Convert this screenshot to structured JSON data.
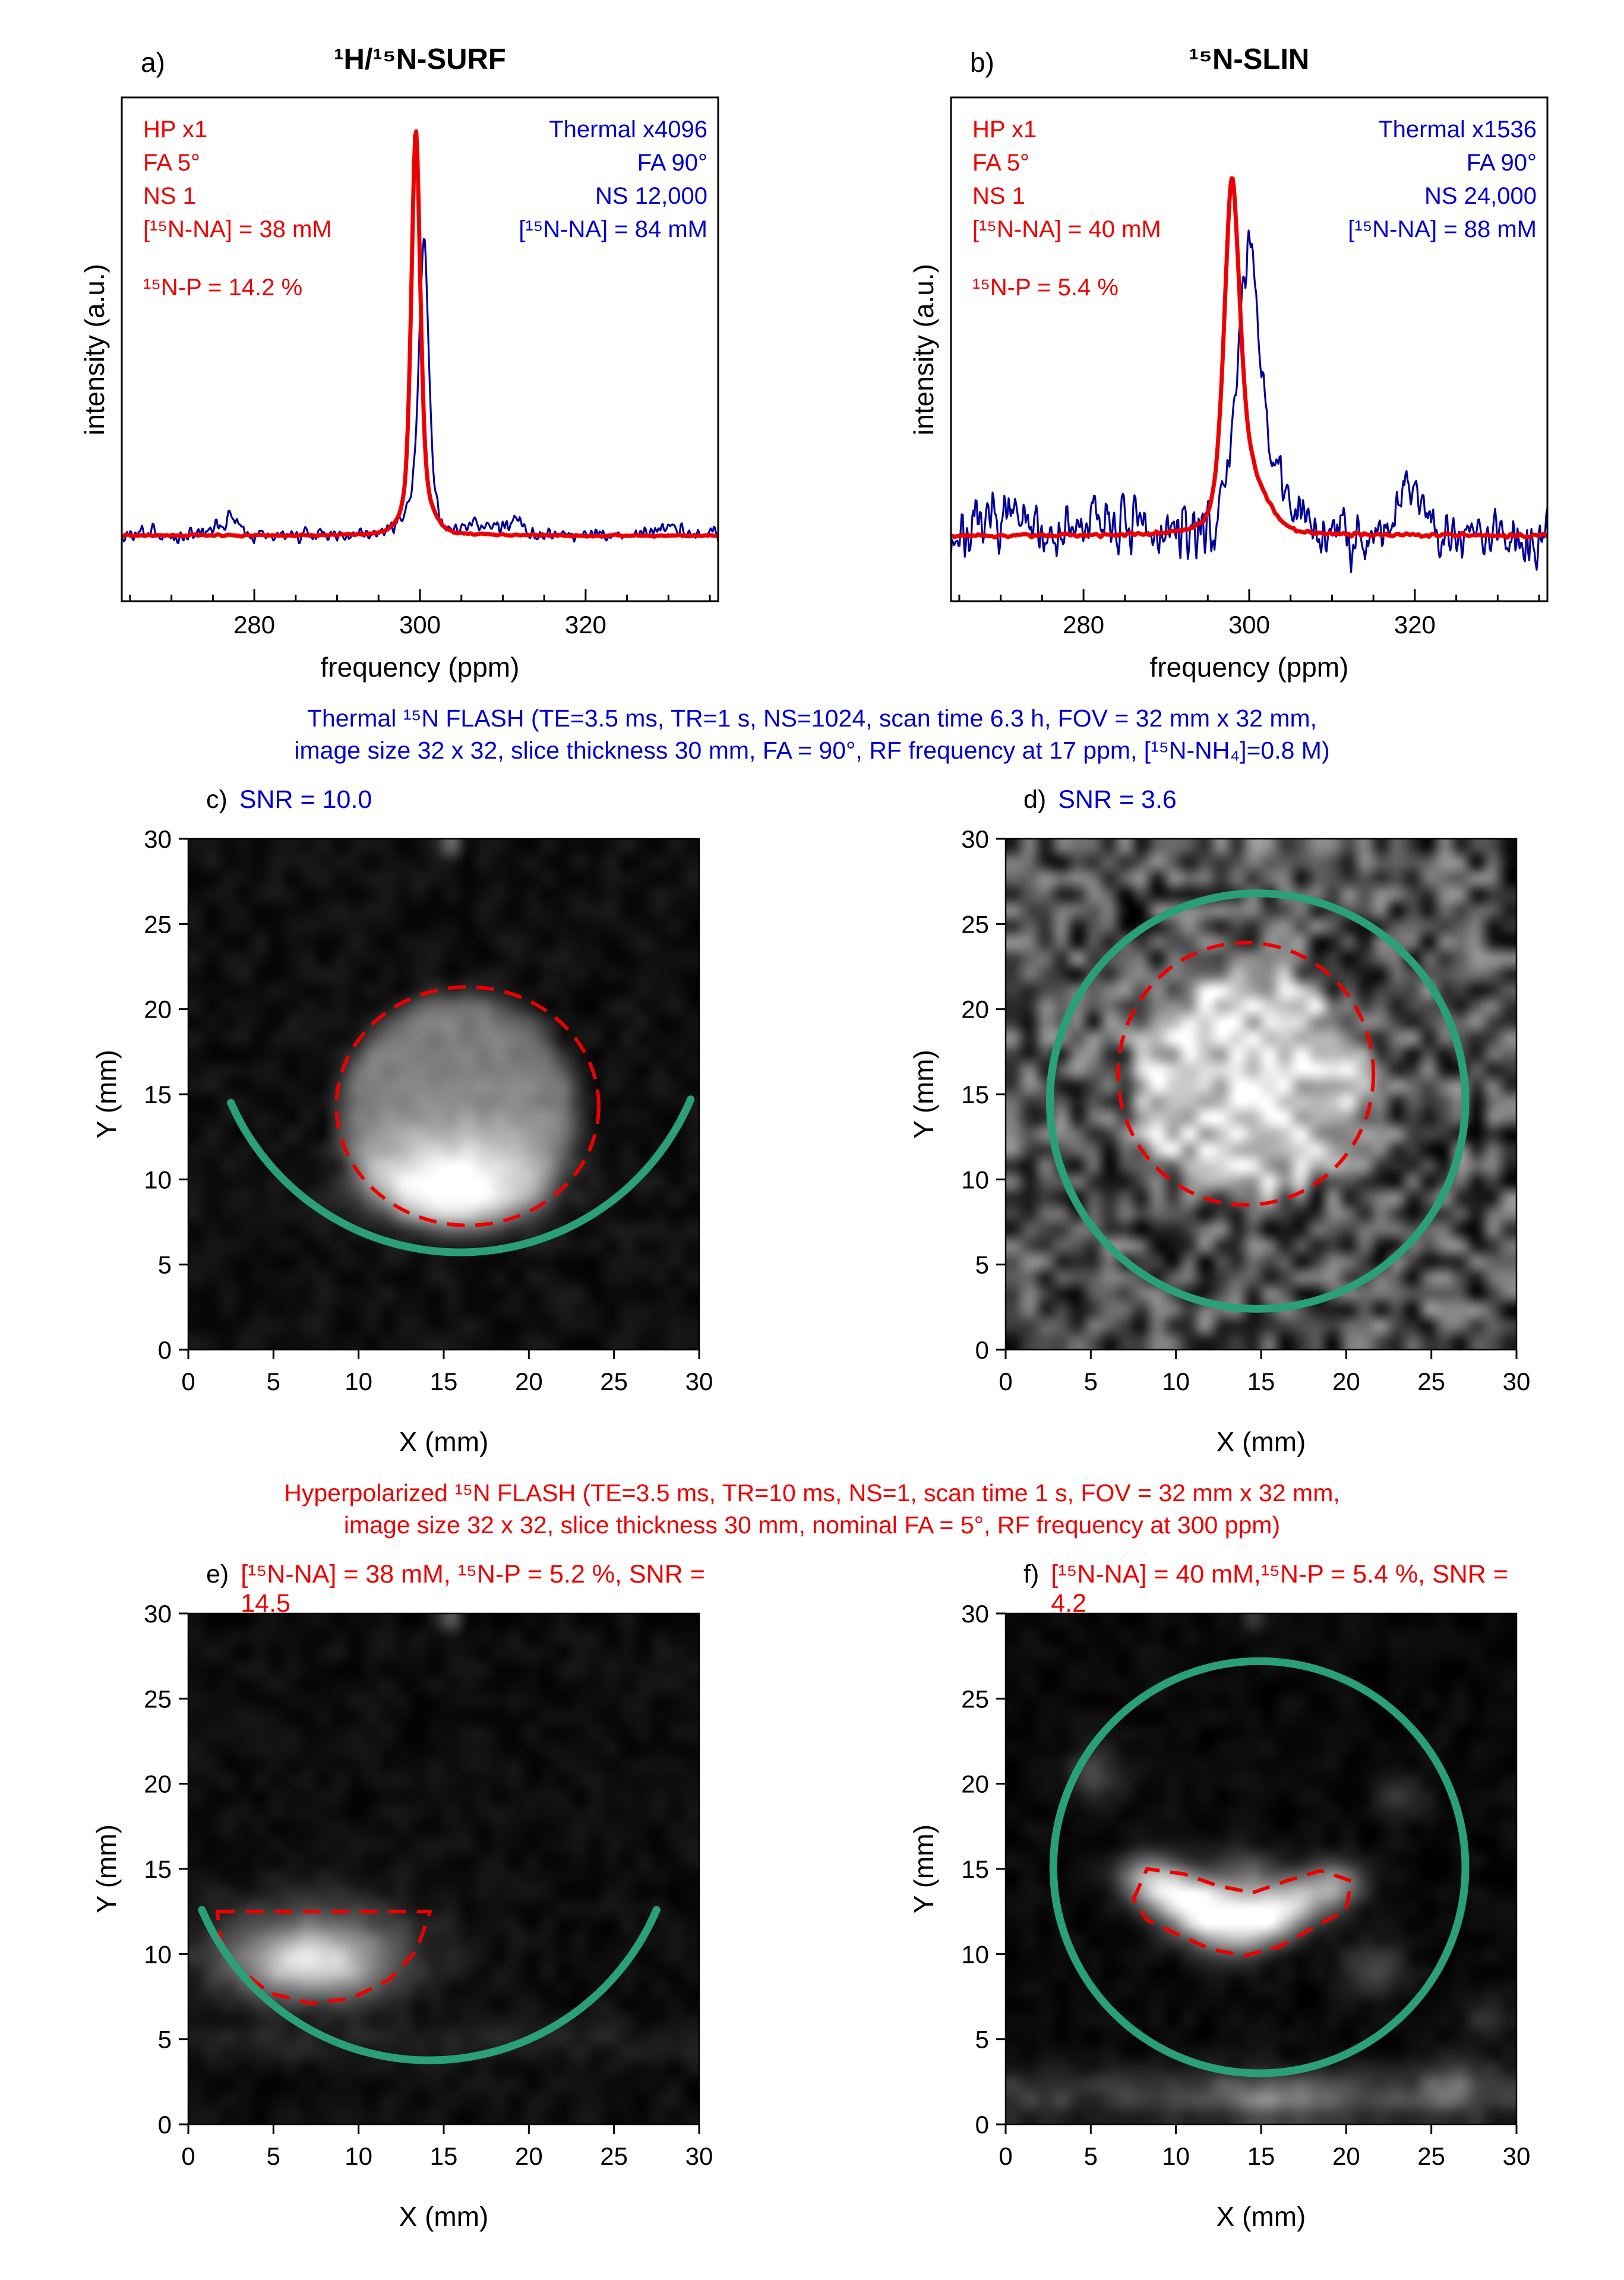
{
  "colors": {
    "red": "#ed0000",
    "blue": "#0000cd",
    "navy": "#000099",
    "green": "#2aa079",
    "axis": "#000000"
  },
  "captions": {
    "thermal_line1": "Thermal ¹⁵N FLASH (TE=3.5 ms, TR=1 s, NS=1024, scan time 6.3 h, FOV = 32 mm x 32 mm,",
    "thermal_line2": "image size 32 x 32, slice thickness 30 mm, FA = 90°, RF frequency at 17 ppm, [¹⁵N-NH₄]=0.8 M)",
    "hyper_line1": "Hyperpolarized ¹⁵N FLASH (TE=3.5 ms, TR=10 ms, NS=1, scan time 1 s, FOV = 32 mm x 32 mm,",
    "hyper_line2": "image size 32 x 32, slice thickness 30 mm, nominal FA = 5°, RF frequency at 300 ppm)"
  },
  "panels": {
    "a": {
      "tag": "a)",
      "title": "¹H/¹⁵N-SURF",
      "xlabel": "frequency (ppm)",
      "ylabel": "intensity (a.u.)",
      "left_lines": [
        "HP x1",
        "FA 5°",
        "NS 1",
        "[¹⁵N-NA] = 38 mM",
        "",
        "¹⁵N-P = 14.2 %"
      ],
      "right_lines": [
        "Thermal x4096",
        "FA 90°",
        "NS 12,000",
        "[¹⁵N-NA] = 84 mM"
      ]
    },
    "b": {
      "tag": "b)",
      "title": "¹⁵N-SLIN",
      "xlabel": "frequency (ppm)",
      "ylabel": "intensity (a.u.)",
      "left_lines": [
        "HP x1",
        "FA 5°",
        "NS 1",
        "[¹⁵N-NA] = 40 mM",
        "",
        "¹⁵N-P = 5.4 %"
      ],
      "right_lines": [
        "Thermal x1536",
        "FA 90°",
        "NS 24,000",
        "[¹⁵N-NA] = 88 mM"
      ]
    },
    "c": {
      "tag": "c)",
      "label": "SNR = 10.0",
      "xlabel": "X (mm)",
      "ylabel": "Y (mm)"
    },
    "d": {
      "tag": "d)",
      "label": "SNR = 3.6",
      "xlabel": "X (mm)",
      "ylabel": "Y (mm)"
    },
    "e": {
      "tag": "e)",
      "label": "[¹⁵N-NA] = 38 mM, ¹⁵N-P = 5.2 %, SNR = 14.5",
      "xlabel": "X (mm)",
      "ylabel": "Y (mm)"
    },
    "f": {
      "tag": "f)",
      "label": "[¹⁵N-NA] = 40 mM,¹⁵N-P = 5.4 %, SNR = 4.2",
      "xlabel": "X (mm)",
      "ylabel": "Y (mm)"
    }
  },
  "chart_data": [
    {
      "id": "a",
      "type": "line",
      "panel": "a",
      "title": "¹H/¹⁵N-SURF",
      "xlabel": "frequency (ppm)",
      "ylabel": "intensity (a.u.)",
      "xlim": [
        264,
        336
      ],
      "xticks": [
        280,
        300,
        320
      ],
      "xminor_step": 5,
      "baseline_frac": 0.87,
      "headroom_frac": 0.045,
      "series": [
        {
          "name": "Thermal x4096",
          "color": "#000099",
          "stroke": 3.2,
          "seed": 3,
          "noise": 0.014,
          "smooth": 1,
          "peaks": [
            {
              "c": 300.5,
              "h": 0.63,
              "w": 0.6
            },
            {
              "c": 299.8,
              "h": 0.1,
              "w": 1.4
            },
            {
              "c": 277.2,
              "h": 0.04,
              "w": 1.4
            },
            {
              "c": 307.6,
              "h": 0.028,
              "w": 1.4
            },
            {
              "c": 311.2,
              "h": 0.035,
              "w": 1.1
            },
            {
              "c": 329.5,
              "h": 0.02,
              "w": 1.8
            }
          ]
        },
        {
          "name": "HP x1",
          "color": "#ed0000",
          "stroke": 7,
          "seed": 4,
          "noise": 0.002,
          "smooth": 2,
          "peaks": [
            {
              "c": 299.5,
              "h": 0.88,
              "w": 0.55
            },
            {
              "c": 299.8,
              "h": 0.1,
              "w": 1.5
            }
          ]
        }
      ]
    },
    {
      "id": "b",
      "type": "line",
      "panel": "b",
      "title": "¹⁵N-SLIN",
      "xlabel": "frequency (ppm)",
      "ylabel": "intensity (a.u.)",
      "xlim": [
        264,
        336
      ],
      "xticks": [
        280,
        300,
        320
      ],
      "xminor_step": 5,
      "baseline_frac": 0.87,
      "headroom_frac": 0.045,
      "series": [
        {
          "name": "Thermal x1536",
          "color": "#000099",
          "stroke": 3.2,
          "seed": 7,
          "noise": 0.05,
          "smooth": 1,
          "peaks": [
            {
              "c": 299.9,
              "h": 0.52,
              "w": 1.1
            },
            {
              "c": 301.5,
              "h": 0.2,
              "w": 2.4
            },
            {
              "c": 298.4,
              "h": 0.1,
              "w": 0.9
            },
            {
              "c": 319.6,
              "h": 0.12,
              "w": 1.6
            },
            {
              "c": 282.5,
              "h": 0.04,
              "w": 2.0
            },
            {
              "c": 270.5,
              "h": 0.05,
              "w": 1.5
            }
          ]
        },
        {
          "name": "HP x1",
          "color": "#ed0000",
          "stroke": 7,
          "seed": 8,
          "noise": 0.004,
          "smooth": 2,
          "peaks": [
            {
              "c": 297.9,
              "h": 0.74,
              "w": 0.95
            },
            {
              "c": 299.5,
              "h": 0.16,
              "w": 2.3
            }
          ]
        }
      ]
    },
    {
      "id": "c",
      "type": "heatmap",
      "panel": "c",
      "label": "SNR = 10.0",
      "xlabel": "X (mm)",
      "ylabel": "Y (mm)",
      "xlim": [
        0,
        30
      ],
      "ylim": [
        0,
        30
      ],
      "ticks": [
        0,
        5,
        10,
        15,
        20,
        25,
        30
      ],
      "grid": 32,
      "seed": 5,
      "background": {
        "mean": 0.06,
        "noise": 0.05
      },
      "blobs": [
        {
          "type": "disk",
          "x": 15.9,
          "y": 13.9,
          "r": 6.9,
          "soft": 2.2,
          "i": 0.42
        },
        {
          "type": "gauss",
          "x": 15.4,
          "y": 9.4,
          "sx": 3.5,
          "sy": 1.5,
          "i": 0.5
        },
        {
          "type": "gauss",
          "x": 15.8,
          "y": 11.6,
          "sx": 3.6,
          "sy": 2.0,
          "i": 0.22
        },
        {
          "type": "gauss",
          "x": 15.2,
          "y": 29.5,
          "sx": 0.4,
          "sy": 0.4,
          "i": 0.4
        }
      ],
      "overlays": [
        {
          "kind": "dashed-ellipse",
          "color": "red",
          "cx": 16.4,
          "cy": 14.3,
          "rx": 7.7,
          "ry": 7.0
        },
        {
          "kind": "arc",
          "color": "green",
          "cx": 16.0,
          "cy": 20.3,
          "r": 14.7,
          "x1": 2.5,
          "y1": 14.5,
          "x2": 29.5,
          "y2": 14.7
        }
      ]
    },
    {
      "id": "d",
      "type": "heatmap",
      "panel": "d",
      "label": "SNR = 3.6",
      "xlabel": "X (mm)",
      "ylabel": "Y (mm)",
      "xlim": [
        0,
        30
      ],
      "ylim": [
        0,
        30
      ],
      "ticks": [
        0,
        5,
        10,
        15,
        20,
        25,
        30
      ],
      "grid": 32,
      "seed": 9,
      "background": {
        "mean": 0.3,
        "noise": 0.3
      },
      "blobs": [
        {
          "type": "disk",
          "x": 14.2,
          "y": 15.7,
          "r": 6.7,
          "soft": 2.4,
          "i": 0.45
        },
        {
          "type": "gauss",
          "x": 14.0,
          "y": 15.5,
          "sx": 4.0,
          "sy": 4.0,
          "i": 0.15
        },
        {
          "type": "gauss",
          "x": 15.0,
          "y": 29.5,
          "sx": 0.4,
          "sy": 0.4,
          "i": 0.35
        }
      ],
      "overlays": [
        {
          "kind": "circle",
          "color": "green",
          "cx": 14.8,
          "cy": 14.6,
          "r": 12.2
        },
        {
          "kind": "dashed-ellipse",
          "color": "red",
          "cx": 14.1,
          "cy": 16.2,
          "rx": 7.5,
          "ry": 7.7
        }
      ]
    },
    {
      "id": "e",
      "type": "heatmap",
      "panel": "e",
      "label": "[¹⁵N-NA] = 38 mM, ¹⁵N-P = 5.2 %, SNR = 14.5",
      "xlabel": "X (mm)",
      "ylabel": "Y (mm)",
      "xlim": [
        0,
        30
      ],
      "ylim": [
        0,
        30
      ],
      "ticks": [
        0,
        5,
        10,
        15,
        20,
        25,
        30
      ],
      "grid": 32,
      "seed": 13,
      "background": {
        "mean": 0.05,
        "noise": 0.045
      },
      "blobs": [
        {
          "type": "gauss",
          "x": 7.3,
          "y": 9.2,
          "sx": 3.0,
          "sy": 1.3,
          "i": 0.62
        },
        {
          "type": "gauss",
          "x": 7.6,
          "y": 11.0,
          "sx": 3.6,
          "sy": 1.5,
          "i": 0.27
        },
        {
          "type": "gauss",
          "x": 7.0,
          "y": 10.0,
          "sx": 5.0,
          "sy": 2.6,
          "i": 0.12
        },
        {
          "type": "hband",
          "y": 4.9,
          "sy": 0.7,
          "i": 0.1
        },
        {
          "type": "gauss",
          "x": 15.2,
          "y": 29.5,
          "sx": 0.4,
          "sy": 0.4,
          "i": 0.4
        }
      ],
      "overlays": [
        {
          "kind": "dashed-poly",
          "color": "red",
          "points": [
            [
              1.7,
              12.5
            ],
            [
              14.2,
              12.5
            ],
            [
              13.4,
              10.2
            ],
            [
              11.8,
              8.5
            ],
            [
              9.6,
              7.4
            ],
            [
              7.2,
              7.1
            ],
            [
              4.8,
              7.7
            ],
            [
              2.9,
              9.2
            ],
            [
              1.9,
              10.8
            ]
          ]
        },
        {
          "kind": "arc",
          "color": "green",
          "cx": 14.15,
          "cy": 18.3,
          "r": 14.5,
          "x1": 0.8,
          "y1": 12.6,
          "x2": 27.5,
          "y2": 12.6
        }
      ]
    },
    {
      "id": "f",
      "type": "heatmap",
      "panel": "f",
      "label": "[¹⁵N-NA] = 40 mM,¹⁵N-P = 5.4 %, SNR = 4.2",
      "xlabel": "X (mm)",
      "ylabel": "Y (mm)",
      "xlim": [
        0,
        30
      ],
      "ylim": [
        0,
        30
      ],
      "ticks": [
        0,
        5,
        10,
        15,
        20,
        25,
        30
      ],
      "grid": 32,
      "seed": 21,
      "background": {
        "mean": 0.035,
        "noise": 0.04
      },
      "blobs": [
        {
          "type": "gauss",
          "x": 9.5,
          "y": 13.9,
          "sx": 1.3,
          "sy": 1.0,
          "i": 0.7
        },
        {
          "type": "gauss",
          "x": 11.5,
          "y": 12.7,
          "sx": 1.5,
          "sy": 1.1,
          "i": 0.85
        },
        {
          "type": "gauss",
          "x": 13.6,
          "y": 11.8,
          "sx": 1.7,
          "sy": 1.2,
          "i": 0.8
        },
        {
          "type": "gauss",
          "x": 15.6,
          "y": 12.4,
          "sx": 1.4,
          "sy": 1.0,
          "i": 0.6
        },
        {
          "type": "gauss",
          "x": 17.6,
          "y": 13.4,
          "sx": 1.4,
          "sy": 1.0,
          "i": 0.55
        },
        {
          "type": "gauss",
          "x": 19.6,
          "y": 14.2,
          "sx": 1.1,
          "sy": 0.9,
          "i": 0.45
        },
        {
          "type": "gauss",
          "x": 7.9,
          "y": 14.6,
          "sx": 1.0,
          "sy": 0.9,
          "i": 0.4
        },
        {
          "type": "gauss",
          "x": 14.1,
          "y": 14.9,
          "sx": 1.2,
          "sy": 0.9,
          "i": 0.3
        },
        {
          "type": "gauss",
          "x": 5.2,
          "y": 20.6,
          "sx": 1.2,
          "sy": 1.0,
          "i": 0.25
        },
        {
          "type": "gauss",
          "x": 21.6,
          "y": 9.1,
          "sx": 1.3,
          "sy": 1.0,
          "i": 0.28
        },
        {
          "type": "gauss",
          "x": 23.2,
          "y": 19.2,
          "sx": 1.0,
          "sy": 0.8,
          "i": 0.18
        },
        {
          "type": "gauss",
          "x": 28.4,
          "y": 6.2,
          "sx": 1.0,
          "sy": 0.8,
          "i": 0.18
        },
        {
          "type": "hband",
          "y": 1.7,
          "sy": 1.0,
          "i": 0.28
        },
        {
          "type": "gauss",
          "x": 16.2,
          "y": 1.6,
          "sx": 3.0,
          "sy": 1.0,
          "i": 0.25
        },
        {
          "type": "gauss",
          "x": 26.2,
          "y": 2.3,
          "sx": 1.5,
          "sy": 1.0,
          "i": 0.25
        },
        {
          "type": "gauss",
          "x": 14.8,
          "y": 29.5,
          "sx": 0.35,
          "sy": 0.35,
          "i": 0.3
        }
      ],
      "overlays": [
        {
          "kind": "circle",
          "color": "green",
          "cx": 14.9,
          "cy": 15.1,
          "r": 12.1
        },
        {
          "kind": "dashed-poly",
          "color": "red",
          "points": [
            [
              7.5,
              13.2
            ],
            [
              8.3,
              15.0
            ],
            [
              10.5,
              14.7
            ],
            [
              12.5,
              14.0
            ],
            [
              14.5,
              13.6
            ],
            [
              16.5,
              14.3
            ],
            [
              18.5,
              14.9
            ],
            [
              20.3,
              14.3
            ],
            [
              20.0,
              12.6
            ],
            [
              18.0,
              11.5
            ],
            [
              16.0,
              10.4
            ],
            [
              14.0,
              9.9
            ],
            [
              12.0,
              10.3
            ],
            [
              10.0,
              11.2
            ],
            [
              8.3,
              12.0
            ]
          ]
        }
      ]
    }
  ]
}
